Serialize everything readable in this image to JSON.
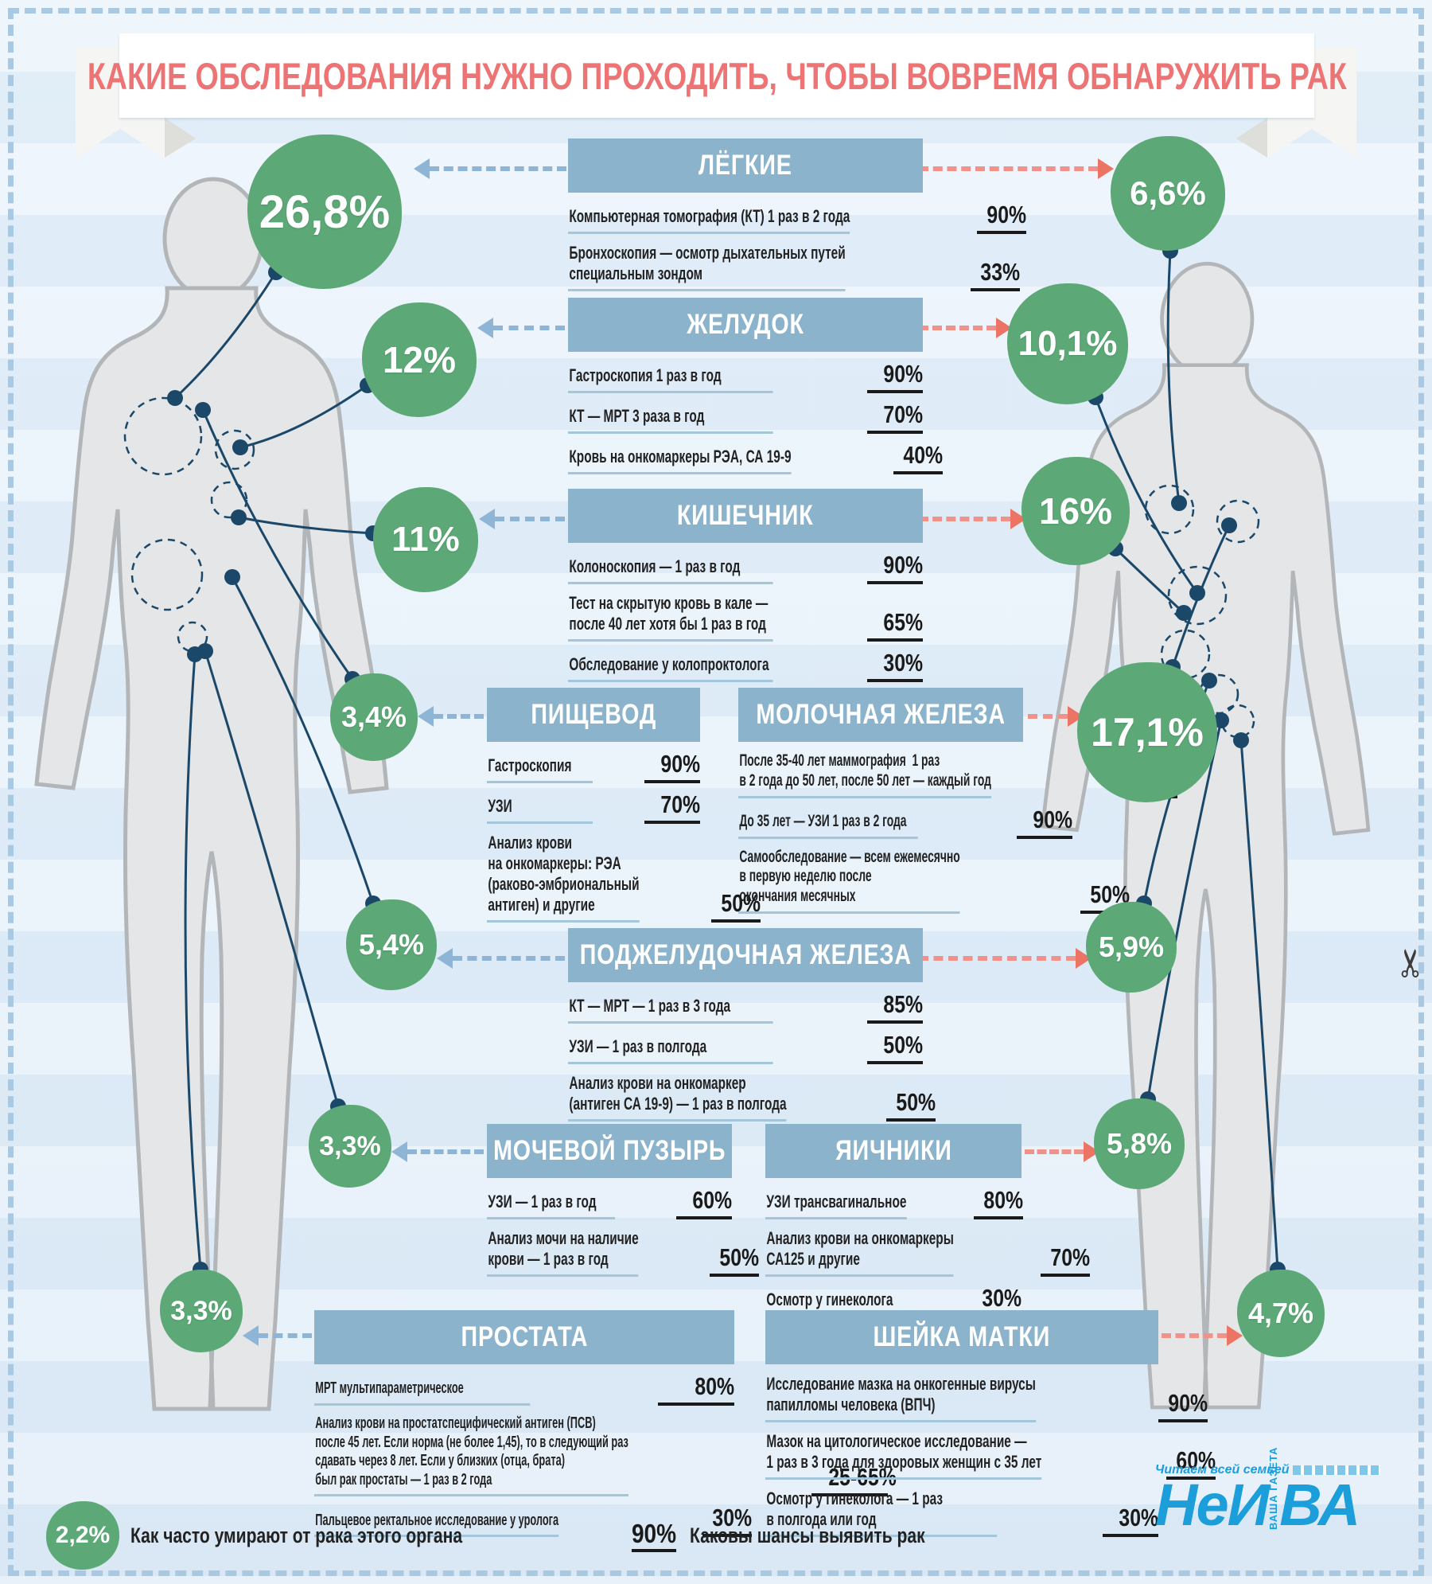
{
  "title": "КАКИЕ ОБСЛЕДОВАНИЯ НУЖНО ПРОХОДИТЬ, ЧТОБЫ ВОВРЕМЯ ОБНАРУЖИТЬ РАК",
  "colors": {
    "accent_green": "#5ca877",
    "header_blue": "#8cb3cc",
    "title_coral": "#ec7474",
    "line_navy": "#1b4869",
    "arrow_blue": "#8fb5d6",
    "arrow_red": "#ec7465",
    "underline_blue": "#a3c6da",
    "logo_blue": "#1b9ed9"
  },
  "sections": [
    {
      "id": "lungs",
      "title": "ЛЁГКИЕ",
      "rows": [
        {
          "text": "Компьютерная томография (КТ) 1 раз в 2 года",
          "value": "90%"
        },
        {
          "text": "Бронхоскопия — осмотр дыхательных путей\nспециальным зондом",
          "value": "33%"
        }
      ]
    },
    {
      "id": "stomach",
      "title": "ЖЕЛУДОК",
      "rows": [
        {
          "text": "Гастроскопия 1 раз в год",
          "value": "90%"
        },
        {
          "text": "КТ — МРТ 3 раза в год",
          "value": "70%"
        },
        {
          "text": "Кровь на онкомаркеры РЭА, СА 19-9",
          "value": "40%"
        }
      ]
    },
    {
      "id": "intestine",
      "title": "КИШЕЧНИК",
      "rows": [
        {
          "text": "Колоноскопия — 1 раз в год",
          "value": "90%"
        },
        {
          "text": "Тест на скрытую кровь в кале —\nпосле 40 лет хотя бы 1 раз в год",
          "value": "65%"
        },
        {
          "text": "Обследование у колопроктолога",
          "value": "30%"
        }
      ]
    },
    {
      "id": "esophagus",
      "title": "ПИЩЕВОД",
      "rows": [
        {
          "text": "Гастроскопия",
          "value": "90%"
        },
        {
          "text": "УЗИ",
          "value": "70%"
        },
        {
          "text": "Анализ крови\nна онкомаркеры: РЭА\n(раково-эмбриональный\nантиген) и другие",
          "value": "50%"
        }
      ]
    },
    {
      "id": "breast",
      "title": "МОЛОЧНАЯ ЖЕЛЕЗА",
      "rows": [
        {
          "text": "После 35-40 лет маммография  1 раз\nв 2 года до 50 лет, после 50 лет — каждый год",
          "value": "90%"
        },
        {
          "text": "До 35 лет — УЗИ 1 раз в 2 года",
          "value": "90%"
        },
        {
          "text": "Самообследование — всем ежемесячно\nв первую неделю после\nокончания месячных",
          "value": "50%"
        }
      ]
    },
    {
      "id": "pancreas",
      "title": "ПОДЖЕЛУДОЧНАЯ ЖЕЛЕЗА",
      "rows": [
        {
          "text": "КТ — МРТ — 1 раз в 3 года",
          "value": "85%"
        },
        {
          "text": "УЗИ — 1 раз в полгода",
          "value": "50%"
        },
        {
          "text": "Анализ крови на онкомаркер\n(антиген СА 19-9) — 1 раз в полгода",
          "value": "50%"
        }
      ]
    },
    {
      "id": "bladder",
      "title": "МОЧЕВОЙ ПУЗЫРЬ",
      "rows": [
        {
          "text": "УЗИ — 1 раз в год",
          "value": "60%"
        },
        {
          "text": "Анализ мочи на наличие\nкрови — 1 раз в год",
          "value": "50%"
        }
      ]
    },
    {
      "id": "ovaries",
      "title": "ЯИЧНИКИ",
      "rows": [
        {
          "text": "УЗИ трансвагинальное",
          "value": "80%"
        },
        {
          "text": "Анализ крови на онкомаркеры\nСА125 и другие",
          "value": "70%"
        },
        {
          "text": "Осмотр у гинеколога",
          "value": "30%"
        }
      ]
    },
    {
      "id": "prostate",
      "title": "ПРОСТАТА",
      "rows": [
        {
          "text": "МРТ мультипараметрическое",
          "value": "80%"
        },
        {
          "text": "Анализ крови на простатспецифический антиген (ПСВ)\nпосле 45 лет. Если норма (не более 1,45), то в следующий раз\nсдавать через 8 лет. Если у близких (отца, брата)\nбыл рак простаты — 1 раз в 2 года",
          "value": "25-65%"
        },
        {
          "text": "Пальцевое ректальное исследование у уролога",
          "value": "30%"
        }
      ]
    },
    {
      "id": "cervix",
      "title": "ШЕЙКА МАТКИ",
      "rows": [
        {
          "text": "Исследование мазка на онкогенные вирусы\nпапилломы человека (ВПЧ)",
          "value": "90%"
        },
        {
          "text": "Мазок на цитологическое исследование —\n1 раз в 3 года для здоровых женщин с 35 лет",
          "value": "60%"
        },
        {
          "text": "Осмотр у гинеколога — 1 раз\nв полгода или год",
          "value": "30%"
        }
      ]
    }
  ],
  "mortality_circles": [
    {
      "id": "m_lungs",
      "organ": "lungs",
      "body": "male",
      "label": "26,8%"
    },
    {
      "id": "m_stomach",
      "organ": "stomach",
      "body": "male",
      "label": "12%"
    },
    {
      "id": "m_intestine",
      "organ": "intestine",
      "body": "male",
      "label": "11%"
    },
    {
      "id": "m_esophagus",
      "organ": "esophagus",
      "body": "male",
      "label": "3,4%"
    },
    {
      "id": "m_pancreas",
      "organ": "pancreas",
      "body": "male",
      "label": "5,4%"
    },
    {
      "id": "m_bladder",
      "organ": "bladder",
      "body": "male",
      "label": "3,3%"
    },
    {
      "id": "m_prostate",
      "organ": "prostate",
      "body": "male",
      "label": "3,3%"
    },
    {
      "id": "f_lungs",
      "organ": "lungs",
      "body": "female",
      "label": "6,6%"
    },
    {
      "id": "f_stomach",
      "organ": "stomach",
      "body": "female",
      "label": "10,1%"
    },
    {
      "id": "f_intestine",
      "organ": "intestine",
      "body": "female",
      "label": "16%"
    },
    {
      "id": "f_breast",
      "organ": "breast",
      "body": "female",
      "label": "17,1%"
    },
    {
      "id": "f_pancreas",
      "organ": "pancreas",
      "body": "female",
      "label": "5,9%"
    },
    {
      "id": "f_ovaries",
      "organ": "ovaries",
      "body": "female",
      "label": "5,8%"
    },
    {
      "id": "f_cervix",
      "organ": "cervix",
      "body": "female",
      "label": "4,7%"
    }
  ],
  "legend": {
    "mortality_example": "2,2%",
    "mortality_label": "Как часто умирают от рака этого органа",
    "detection_example": "90%",
    "detection_label": "Каковы шансы выявить рак"
  },
  "logo": {
    "tagline": "Читаем всей семьей",
    "name_part1": "Не",
    "name_part2": "И",
    "name_part3": "ВА",
    "vertical_text": "ВАША ГАЗЕТА"
  },
  "icons": {
    "scissors": "✂"
  },
  "chart_data": {
    "type": "table",
    "title": "КАКИЕ ОБСЛЕДОВАНИЯ НУЖНО ПРОХОДИТЬ, ЧТОБЫ ВОВРЕМЯ ОБНАРУЖИТЬ РАК",
    "mortality_percent": {
      "лёгкие_муж": 26.8,
      "желудок_муж": 12,
      "кишечник_муж": 11,
      "пищевод_муж": 3.4,
      "поджелудочная_муж": 5.4,
      "мочевой_пузырь_муж": 3.3,
      "простата_муж": 3.3,
      "лёгкие_жен": 6.6,
      "желудок_жен": 10.1,
      "кишечник_жен": 16,
      "молочная_железа_жен": 17.1,
      "поджелудочная_жен": 5.9,
      "яичники_жен": 5.8,
      "шейка_матки_жен": 4.7
    },
    "detection_chance_percent": {
      "лёгкие": {
        "КТ 1 раз в 2 года": 90,
        "Бронхоскопия": 33
      },
      "желудок": {
        "Гастроскопия 1 раз в год": 90,
        "КТ-МРТ 3 раза в год": 70,
        "Кровь на онкомаркеры РЭА, СА 19-9": 40
      },
      "кишечник": {
        "Колоноскопия 1 раз в год": 90,
        "Тест на скрытую кровь в кале": 65,
        "Обследование у колопроктолога": 30
      },
      "пищевод": {
        "Гастроскопия": 90,
        "УЗИ": 70,
        "Анализ крови на онкомаркеры РЭА": 50
      },
      "молочная_железа": {
        "Маммография после 35-40 лет": 90,
        "УЗИ до 35 лет": 90,
        "Самообследование ежемесячно": 50
      },
      "поджелудочная_железа": {
        "КТ-МРТ 1 раз в 3 года": 85,
        "УЗИ 1 раз в полгода": 50,
        "Анализ крови на онкомаркер СА 19-9": 50
      },
      "мочевой_пузырь": {
        "УЗИ 1 раз в год": 60,
        "Анализ мочи на наличие крови": 50
      },
      "яичники": {
        "УЗИ трансвагинальное": 80,
        "Анализ крови на онкомаркеры СА125": 70,
        "Осмотр у гинеколога": 30
      },
      "простата": {
        "МРТ мультипараметрическое": 80,
        "Анализ крови на ПСВ после 45 лет": "25-65",
        "Пальцевое ректальное исследование": 30
      },
      "шейка_матки": {
        "Мазок на вирусы ВПЧ": 90,
        "Мазок на цитологию 1 раз в 3 года": 60,
        "Осмотр у гинеколога": 30
      }
    }
  }
}
